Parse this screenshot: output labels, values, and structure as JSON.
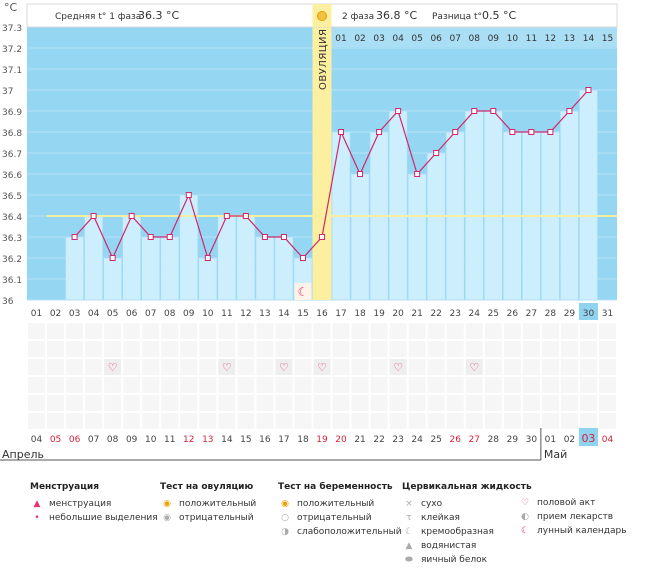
{
  "axis": {
    "unit_label": "°C",
    "month_start": "Апрель",
    "month_end": "Май"
  },
  "header": {
    "phase1_label": "Средняя t° 1 фаза",
    "phase1_value": "36.3 °C",
    "phase2_label": "2 фаза",
    "phase2_value": "36.8 °C",
    "diff_label": "Разница t°",
    "diff_value": "0.5 °C"
  },
  "ovulation_label": "ОВУЛЯЦИЯ",
  "colors": {
    "bg_blue": "#95d6f2",
    "bar": "#cdeefc",
    "bar_edge": "#a6dcf5",
    "line": "#d0286b",
    "coverline": "#f5f0a0",
    "ovulation": "#fcefa0",
    "header_bg": "#ffffff",
    "highlight": "#8fd3ef",
    "grid_text": "#555555",
    "red_date": "#d2223a"
  },
  "chart_data": {
    "type": "bar",
    "title": "",
    "ylabel": "°C",
    "ylim": [
      36.0,
      37.3
    ],
    "y_ticks": [
      "36",
      "36.1",
      "36.2",
      "36.3",
      "36.4",
      "36.5",
      "36.6",
      "36.7",
      "36.8",
      "36.9",
      "37",
      "37.1",
      "37.2",
      "37.3"
    ],
    "cycle_days": [
      "01",
      "02",
      "03",
      "04",
      "05",
      "06",
      "07",
      "08",
      "09",
      "10",
      "11",
      "12",
      "13",
      "14",
      "15",
      "16",
      "17",
      "18",
      "19",
      "20",
      "21",
      "22",
      "23",
      "24",
      "25",
      "26",
      "27",
      "28",
      "29",
      "30",
      "31"
    ],
    "calendar_dates": [
      "04",
      "05",
      "06",
      "07",
      "08",
      "09",
      "10",
      "11",
      "12",
      "13",
      "14",
      "15",
      "16",
      "17",
      "18",
      "19",
      "20",
      "21",
      "22",
      "23",
      "24",
      "25",
      "26",
      "27",
      "28",
      "29",
      "30",
      "01",
      "02",
      "03",
      "04"
    ],
    "red_dates": [
      1,
      2,
      8,
      9,
      15,
      16,
      22,
      23,
      29,
      30
    ],
    "phase2_days": [
      "01",
      "02",
      "03",
      "04",
      "05",
      "06",
      "07",
      "08",
      "09",
      "10",
      "11",
      "12",
      "13",
      "14",
      "15"
    ],
    "highlight_index": 29,
    "values": [
      null,
      null,
      36.3,
      36.4,
      36.2,
      36.4,
      36.3,
      36.3,
      36.5,
      36.2,
      36.4,
      36.4,
      36.3,
      36.3,
      36.2,
      36.3,
      36.8,
      36.6,
      36.8,
      36.9,
      36.6,
      36.7,
      36.8,
      36.9,
      36.9,
      36.8,
      36.8,
      36.8,
      36.9,
      37.0,
      null
    ],
    "coverline": 36.4,
    "ovulation_day": 16,
    "heart_days": [
      5,
      11,
      14,
      16,
      20,
      24
    ],
    "moon_day": 15
  },
  "legend": {
    "menstruation": {
      "title": "Менструация",
      "items": [
        "менструация",
        "небольшие выделения"
      ]
    },
    "ovulation_test": {
      "title": "Тест на овуляцию",
      "items": [
        "положительный",
        "отрицательный"
      ]
    },
    "pregnancy_test": {
      "title": "Тест на беременность",
      "items": [
        "положительный",
        "отрицательный",
        "слабоположительный"
      ]
    },
    "cervical": {
      "title": "Цервикальная жидкость",
      "items": [
        "сухо",
        "клейкая",
        "кремообразная",
        "водянистая",
        "яичный белок"
      ]
    },
    "other": {
      "items": [
        "половой акт",
        "прием лекарств",
        "лунный календарь"
      ]
    },
    "icons": [
      "drop-icon",
      "small-drop-icon",
      "sun-icon",
      "grey-sun-icon",
      "sun-icon",
      "grey-sun-icon",
      "grey-sun-icon",
      "cross-icon",
      "t-icon",
      "curl-icon",
      "drop-icon",
      "oval-icon",
      "heart-icon",
      "pill-icon",
      "moon-icon"
    ]
  }
}
